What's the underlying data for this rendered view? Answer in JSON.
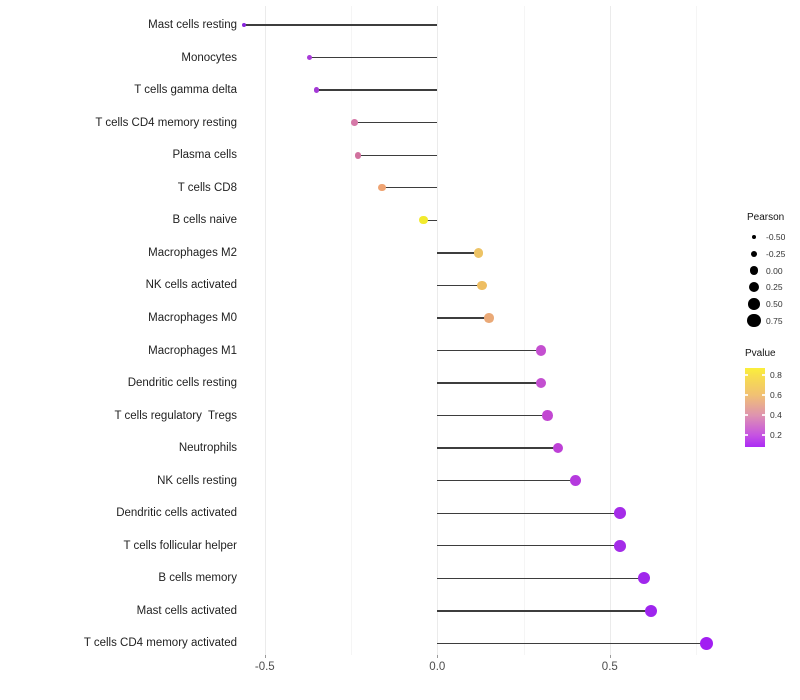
{
  "chart_data": {
    "type": "lollipop",
    "title": "",
    "xlabel": "",
    "ylabel": "",
    "xlim": [
      -0.57,
      0.82
    ],
    "grid": "vertical-only",
    "x_axis": {
      "major_ticks": [
        {
          "value": -0.5,
          "label": "-0.5"
        },
        {
          "value": 0.0,
          "label": "0.0"
        },
        {
          "value": 0.5,
          "label": "0.5"
        }
      ],
      "minor_ticks": [
        -0.25,
        0.25,
        0.75
      ]
    },
    "points": [
      {
        "label": "Mast cells resting",
        "pearson": -0.56,
        "color": "#8826db"
      },
      {
        "label": "Monocytes",
        "pearson": -0.37,
        "color": "#a93bd9"
      },
      {
        "label": "T cells gamma delta",
        "pearson": -0.35,
        "color": "#a43ad6"
      },
      {
        "label": "T cells CD4 memory resting",
        "pearson": -0.24,
        "color": "#d679a8"
      },
      {
        "label": "Plasma cells",
        "pearson": -0.23,
        "color": "#d1719e"
      },
      {
        "label": "T cells CD8",
        "pearson": -0.16,
        "color": "#efa473"
      },
      {
        "label": "B cells naive",
        "pearson": -0.04,
        "color": "#f2ea2e"
      },
      {
        "label": "Macrophages M2",
        "pearson": 0.12,
        "color": "#edc365"
      },
      {
        "label": "NK cells activated",
        "pearson": 0.13,
        "color": "#eebe62"
      },
      {
        "label": "Macrophages M0",
        "pearson": 0.15,
        "color": "#eaa977"
      },
      {
        "label": "Macrophages M1",
        "pearson": 0.3,
        "color": "#c44fd0"
      },
      {
        "label": "Dendritic cells resting",
        "pearson": 0.3,
        "color": "#c34fd0"
      },
      {
        "label": "T cells regulatory  Tregs",
        "pearson": 0.32,
        "color": "#c247d2"
      },
      {
        "label": "Neutrophils",
        "pearson": 0.35,
        "color": "#bd40d6"
      },
      {
        "label": "NK cells resting",
        "pearson": 0.4,
        "color": "#b53ade"
      },
      {
        "label": "Dendritic cells activated",
        "pearson": 0.53,
        "color": "#a52ce8"
      },
      {
        "label": "T cells follicular helper",
        "pearson": 0.53,
        "color": "#a42ce8"
      },
      {
        "label": "B cells memory",
        "pearson": 0.6,
        "color": "#a027ec"
      },
      {
        "label": "Mast cells activated",
        "pearson": 0.62,
        "color": "#9e25ee"
      },
      {
        "label": "T cells CD4 memory activated",
        "pearson": 0.78,
        "color": "#a21ef2"
      }
    ],
    "legends": {
      "pearson": {
        "title": "Pearson",
        "items": [
          {
            "value": -0.5,
            "label": "-0.50"
          },
          {
            "value": -0.25,
            "label": "-0.25"
          },
          {
            "value": 0.0,
            "label": "0.00"
          },
          {
            "value": 0.25,
            "label": "0.25"
          },
          {
            "value": 0.5,
            "label": "0.50"
          },
          {
            "value": 0.75,
            "label": "0.75"
          }
        ]
      },
      "pvalue": {
        "title": "Pvalue",
        "ticks": [
          {
            "value": 0.8,
            "label": "0.8"
          },
          {
            "value": 0.6,
            "label": "0.6"
          },
          {
            "value": 0.4,
            "label": "0.4"
          },
          {
            "value": 0.2,
            "label": "0.2"
          }
        ],
        "range_top": 0.87,
        "range_bottom": 0.08,
        "gradient_stops": [
          {
            "pct": 0,
            "color": "#fbef3b"
          },
          {
            "pct": 9,
            "color": "#f8e04b"
          },
          {
            "pct": 34,
            "color": "#f1c173"
          },
          {
            "pct": 60,
            "color": "#de93b0"
          },
          {
            "pct": 85,
            "color": "#c653e2"
          },
          {
            "pct": 100,
            "color": "#ab2bf4"
          }
        ]
      }
    },
    "stick_color": "#3d3d3d",
    "background_color": "#ffffff"
  }
}
